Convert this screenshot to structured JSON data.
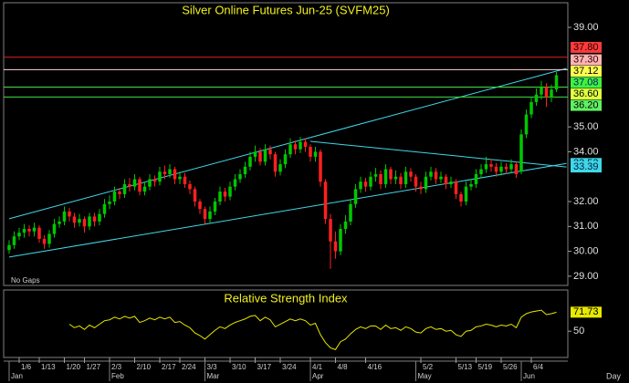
{
  "chart_data": {
    "type": "candlestick",
    "title": "Silver Online Futures Jun-25 (SVFM25)",
    "annotation": "No Gaps",
    "period": "Day",
    "up_color": "#00c800",
    "down_color": "#ff2020",
    "open": [
      30.05,
      30.25,
      30.6,
      30.75,
      30.9,
      30.8,
      30.95,
      30.5,
      30.3,
      30.7,
      31.1,
      31.2,
      31.6,
      31.4,
      31.15,
      31.3,
      31.0,
      31.4,
      31.2,
      31.5,
      31.9,
      32.0,
      32.4,
      32.3,
      32.7,
      32.6,
      32.9,
      32.4,
      32.6,
      32.9,
      32.8,
      33.2,
      33.1,
      33.3,
      32.9,
      33.0,
      32.7,
      32.5,
      32.0,
      31.7,
      31.3,
      31.6,
      32.0,
      32.4,
      32.2,
      32.6,
      32.9,
      33.1,
      33.4,
      33.8,
      34.0,
      33.6,
      34.1,
      33.9,
      33.2,
      33.5,
      33.9,
      34.3,
      34.1,
      34.4,
      34.2,
      33.8,
      34.0,
      32.8,
      31.3,
      30.4,
      30.0,
      30.9,
      31.2,
      31.9,
      32.5,
      32.8,
      32.6,
      33.0,
      33.1,
      32.7,
      33.3,
      32.9,
      33.0,
      32.7,
      33.2,
      33.0,
      32.6,
      32.5,
      33.0,
      33.2,
      32.9,
      33.0,
      32.7,
      32.8,
      32.3,
      32.0,
      32.6,
      32.7,
      33.1,
      33.3,
      33.5,
      33.4,
      33.2,
      33.4,
      33.3,
      33.5,
      33.2,
      34.7,
      35.5,
      36.0,
      36.3,
      36.6,
      36.2,
      36.5
    ],
    "high": [
      30.45,
      30.8,
      30.95,
      31.1,
      31.05,
      31.15,
      31.05,
      30.65,
      30.85,
      31.3,
      31.4,
      31.8,
      31.75,
      31.55,
      31.5,
      31.4,
      31.55,
      31.55,
      31.7,
      32.1,
      32.25,
      32.6,
      32.55,
      32.9,
      32.95,
      33.1,
      33.0,
      32.8,
      33.1,
      33.05,
      33.4,
      33.45,
      33.5,
      33.4,
      33.2,
      33.15,
      32.85,
      32.6,
      32.1,
      31.8,
      31.8,
      32.15,
      32.6,
      32.55,
      32.8,
      33.1,
      33.3,
      33.6,
      34.0,
      34.25,
      34.15,
      34.3,
      34.25,
      34.0,
      33.7,
      34.1,
      34.55,
      34.45,
      34.6,
      34.55,
      34.3,
      34.2,
      34.1,
      32.9,
      31.5,
      30.8,
      31.1,
      31.45,
      32.1,
      32.7,
      33.0,
      32.95,
      33.2,
      33.35,
      33.25,
      33.5,
      33.4,
      33.25,
      33.15,
      33.4,
      33.35,
      33.1,
      32.8,
      33.2,
      33.4,
      33.35,
      33.2,
      33.1,
      33.0,
      32.9,
      32.4,
      32.8,
      32.9,
      33.3,
      33.5,
      33.8,
      33.7,
      33.55,
      33.6,
      33.55,
      33.7,
      33.6,
      34.9,
      35.7,
      36.2,
      36.55,
      36.85,
      36.75,
      36.7,
      37.2
    ],
    "low": [
      29.9,
      30.1,
      30.45,
      30.55,
      30.6,
      30.6,
      30.35,
      30.1,
      30.15,
      30.55,
      30.95,
      31.05,
      31.2,
      30.95,
      31.0,
      30.75,
      30.85,
      31.0,
      31.05,
      31.35,
      31.7,
      31.85,
      32.1,
      32.15,
      32.4,
      32.45,
      32.25,
      32.25,
      32.45,
      32.6,
      32.65,
      32.9,
      32.95,
      32.7,
      32.7,
      32.55,
      32.3,
      31.8,
      31.5,
      31.1,
      31.15,
      31.45,
      31.85,
      32.0,
      32.05,
      32.45,
      32.75,
      32.95,
      33.25,
      33.6,
      33.45,
      33.45,
      33.7,
      33.0,
      33.05,
      33.35,
      33.75,
      33.9,
      33.95,
      34.0,
      33.6,
      33.6,
      32.6,
      31.1,
      29.3,
      29.7,
      29.85,
      30.7,
      31.05,
      31.75,
      32.35,
      32.4,
      32.45,
      32.8,
      32.5,
      32.55,
      32.7,
      32.7,
      32.5,
      32.55,
      32.8,
      32.4,
      32.3,
      32.35,
      32.85,
      32.7,
      32.75,
      32.5,
      32.55,
      32.1,
      31.8,
      31.85,
      32.45,
      32.55,
      32.95,
      33.15,
      33.2,
      33.0,
      33.05,
      33.1,
      33.15,
      32.95,
      33.1,
      34.55,
      35.35,
      35.85,
      36.1,
      35.8,
      36.0,
      36.4
    ],
    "close": [
      30.25,
      30.6,
      30.75,
      30.9,
      30.8,
      30.95,
      30.5,
      30.3,
      30.7,
      31.1,
      31.2,
      31.6,
      31.4,
      31.15,
      31.3,
      31.0,
      31.4,
      31.2,
      31.5,
      31.9,
      32.0,
      32.4,
      32.3,
      32.7,
      32.6,
      32.9,
      32.4,
      32.6,
      32.9,
      32.8,
      33.2,
      33.1,
      33.3,
      32.9,
      33.0,
      32.7,
      32.5,
      32.0,
      31.7,
      31.3,
      31.6,
      32.0,
      32.4,
      32.2,
      32.6,
      32.9,
      33.1,
      33.4,
      33.8,
      34.0,
      33.6,
      34.1,
      33.9,
      33.2,
      33.5,
      33.9,
      34.3,
      34.1,
      34.4,
      34.2,
      33.8,
      34.0,
      32.8,
      31.3,
      30.4,
      30.0,
      30.9,
      31.2,
      31.9,
      32.5,
      32.8,
      32.6,
      33.0,
      33.1,
      32.7,
      33.3,
      32.9,
      33.0,
      32.7,
      33.2,
      33.0,
      32.6,
      32.5,
      33.0,
      33.2,
      32.9,
      33.0,
      32.7,
      32.8,
      32.3,
      32.0,
      32.6,
      32.7,
      33.1,
      33.3,
      33.5,
      33.4,
      33.2,
      33.4,
      33.3,
      33.5,
      33.1,
      34.7,
      35.5,
      36.0,
      36.3,
      36.6,
      36.2,
      36.5,
      37.08
    ],
    "ylim": [
      28.63,
      39.99
    ],
    "yticks": [
      {
        "value": 39,
        "label": "39.00"
      },
      {
        "value": 35,
        "label": "35.00"
      },
      {
        "value": 34,
        "label": "34.00"
      },
      {
        "value": 32,
        "label": "32.00"
      },
      {
        "value": 31,
        "label": "31.00"
      },
      {
        "value": 30,
        "label": "30.00"
      },
      {
        "value": 29,
        "label": "29.00"
      }
    ],
    "xticks": [
      {
        "value": 2,
        "label": "1/6"
      },
      {
        "value": 6,
        "label": "1/13"
      },
      {
        "value": 11,
        "label": "1/20"
      },
      {
        "value": 15,
        "label": "1/27"
      },
      {
        "value": 20,
        "label": "2/3"
      },
      {
        "value": 25,
        "label": "2/10"
      },
      {
        "value": 30,
        "label": "2/17"
      },
      {
        "value": 34,
        "label": "2/24"
      },
      {
        "value": 39,
        "label": "3/3"
      },
      {
        "value": 44,
        "label": "3/10"
      },
      {
        "value": 49,
        "label": "3/17"
      },
      {
        "value": 54,
        "label": "3/24"
      },
      {
        "value": 60,
        "label": "4/1"
      },
      {
        "value": 65,
        "label": "4/8"
      },
      {
        "value": 71,
        "label": "4/16"
      },
      {
        "value": 82,
        "label": "5/2"
      },
      {
        "value": 89,
        "label": "5/13"
      },
      {
        "value": 93,
        "label": "5/19"
      },
      {
        "value": 98,
        "label": "5/26"
      },
      {
        "value": 104,
        "label": "6/4"
      }
    ],
    "month_ticks": [
      {
        "value": 0,
        "label": "Jan"
      },
      {
        "value": 20,
        "label": "Feb"
      },
      {
        "value": 39,
        "label": "Mar"
      },
      {
        "value": 60,
        "label": "Apr"
      },
      {
        "value": 81,
        "label": "May"
      },
      {
        "value": 102,
        "label": "Jun"
      }
    ],
    "levels": [
      {
        "value": 37.8,
        "label": "37.80",
        "line": true,
        "line_color": "#e02020",
        "box_color": "#ff3a3a",
        "text_color": "#200000"
      },
      {
        "value": 37.3,
        "label": "37.30",
        "line": true,
        "line_color": "#ffd8d8",
        "box_color": "#ffb4b4",
        "text_color": "#300000"
      },
      {
        "value": 37.12,
        "label": "37.12",
        "line": false,
        "line_color": "#ffff60",
        "box_color": "#ffff50",
        "text_color": "#000000"
      },
      {
        "value": 37.08,
        "label": "37.08",
        "line": false,
        "line_color": "#40ff40",
        "box_color": "#40f040",
        "text_color": "#002060"
      },
      {
        "value": 36.6,
        "label": "36.60",
        "line": true,
        "line_color": "#40e040",
        "box_color": "#e0ff40",
        "text_color": "#000000"
      },
      {
        "value": 36.2,
        "label": "36.20",
        "line": true,
        "line_color": "#40e040",
        "box_color": "#60f060",
        "text_color": "#000000"
      }
    ],
    "trendline_color": "#40d8e8",
    "trendlines": [
      {
        "x": [
          0,
          111
        ],
        "values": [
          31.31,
          37.35
        ],
        "labeled": false
      },
      {
        "x": [
          0,
          111
        ],
        "values": [
          29.77,
          33.53
        ],
        "labeled": true
      },
      {
        "x": [
          60,
          111
        ],
        "values": [
          34.42,
          33.39
        ],
        "labeled": true
      }
    ],
    "indicator": {
      "type": "line",
      "title": "Relative Strength Index",
      "color": "#e8e800",
      "ylim": [
        20,
        95
      ],
      "yticks": [
        50
      ],
      "values": [
        null,
        null,
        null,
        null,
        null,
        null,
        null,
        null,
        null,
        null,
        null,
        null,
        58,
        54,
        56,
        52,
        57,
        54,
        58,
        62,
        63,
        66,
        64,
        67,
        65,
        67,
        60,
        62,
        65,
        63,
        66,
        64,
        66,
        60,
        61,
        57,
        54,
        48,
        45,
        41,
        46,
        51,
        55,
        53,
        57,
        60,
        62,
        64,
        67,
        68,
        62,
        66,
        63,
        55,
        58,
        61,
        64,
        62,
        64,
        62,
        57,
        59,
        46,
        37,
        31,
        29,
        38,
        41,
        47,
        52,
        55,
        53,
        56,
        56,
        52,
        57,
        53,
        54,
        51,
        55,
        53,
        49,
        48,
        53,
        55,
        52,
        53,
        50,
        51,
        46,
        44,
        50,
        51,
        55,
        56,
        58,
        57,
        55,
        57,
        56,
        58,
        54,
        66,
        70,
        72,
        73,
        74,
        69,
        70,
        71.73
      ]
    }
  }
}
